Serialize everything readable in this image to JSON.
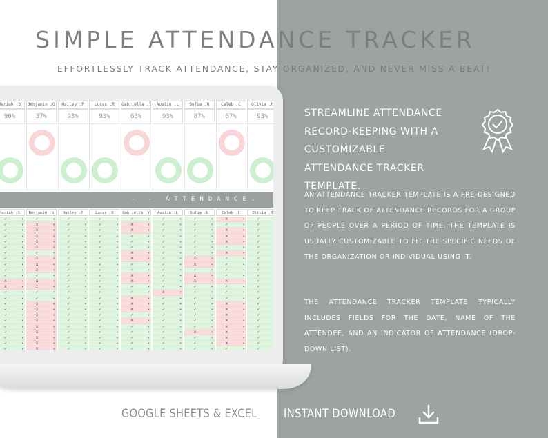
{
  "header": {
    "title": "SIMPLE ATTENDANCE TRACKER",
    "subtitle": "EFFORTLESSLY TRACK ATTENDANCE, STAY ORGANIZED, AND NEVER MISS A BEAT!"
  },
  "spreadsheet": {
    "section_label": "- - ATTENDANCE.",
    "students": [
      {
        "name": "Mariah .S",
        "percent": "90%",
        "status": "good"
      },
      {
        "name": "Benjamin .G",
        "percent": "37%",
        "status": "bad"
      },
      {
        "name": "Hailey .P",
        "percent": "93%",
        "status": "good"
      },
      {
        "name": "Lucas .R",
        "percent": "93%",
        "status": "good"
      },
      {
        "name": "Gabriella .Y",
        "percent": "63%",
        "status": "bad"
      },
      {
        "name": "Austin .L",
        "percent": "93%",
        "status": "good"
      },
      {
        "name": "Sofia .G",
        "percent": "87%",
        "status": "good"
      },
      {
        "name": "Caleb .C",
        "percent": "67%",
        "status": "bad"
      },
      {
        "name": "Olivia .M",
        "percent": "93%",
        "status": "good"
      }
    ],
    "present_mark": "✓",
    "absent_mark": "x",
    "colors": {
      "present": "#dff5df",
      "absent": "#fadcdc",
      "donut_good": "#ccefcf",
      "donut_bad": "#f9d6d6"
    }
  },
  "panel": {
    "heading": "STREAMLINE ATTENDANCE RECORD-KEEPING WITH A CUSTOMIZABLE ATTENDANCE TRACKER TEMPLATE.",
    "badge_icon": "award-ribbon-check-icon",
    "paragraph1": "AN ATTENDANCE TRACKER TEMPLATE IS A PRE-DESIGNED TO KEEP TRACK OF ATTENDANCE RECORDS FOR A GROUP OF PEOPLE OVER A PERIOD OF TIME. THE TEMPLATE IS USUALLY CUSTOMIZABLE TO FIT THE SPECIFIC NEEDS OF THE ORGANIZATION OR INDIVIDUAL USING IT.",
    "paragraph2": "THE ATTENDANCE TRACKER TEMPLATE TYPICALLY INCLUDES FIELDS FOR THE DATE, NAME OF THE ATTENDEE, AND AN INDICATOR OF ATTENDANCE (DROP-DOWN LIST)."
  },
  "footer": {
    "left": "GOOGLE SHEETS & EXCEL",
    "right": "INSTANT DOWNLOAD",
    "download_icon": "download-icon"
  }
}
